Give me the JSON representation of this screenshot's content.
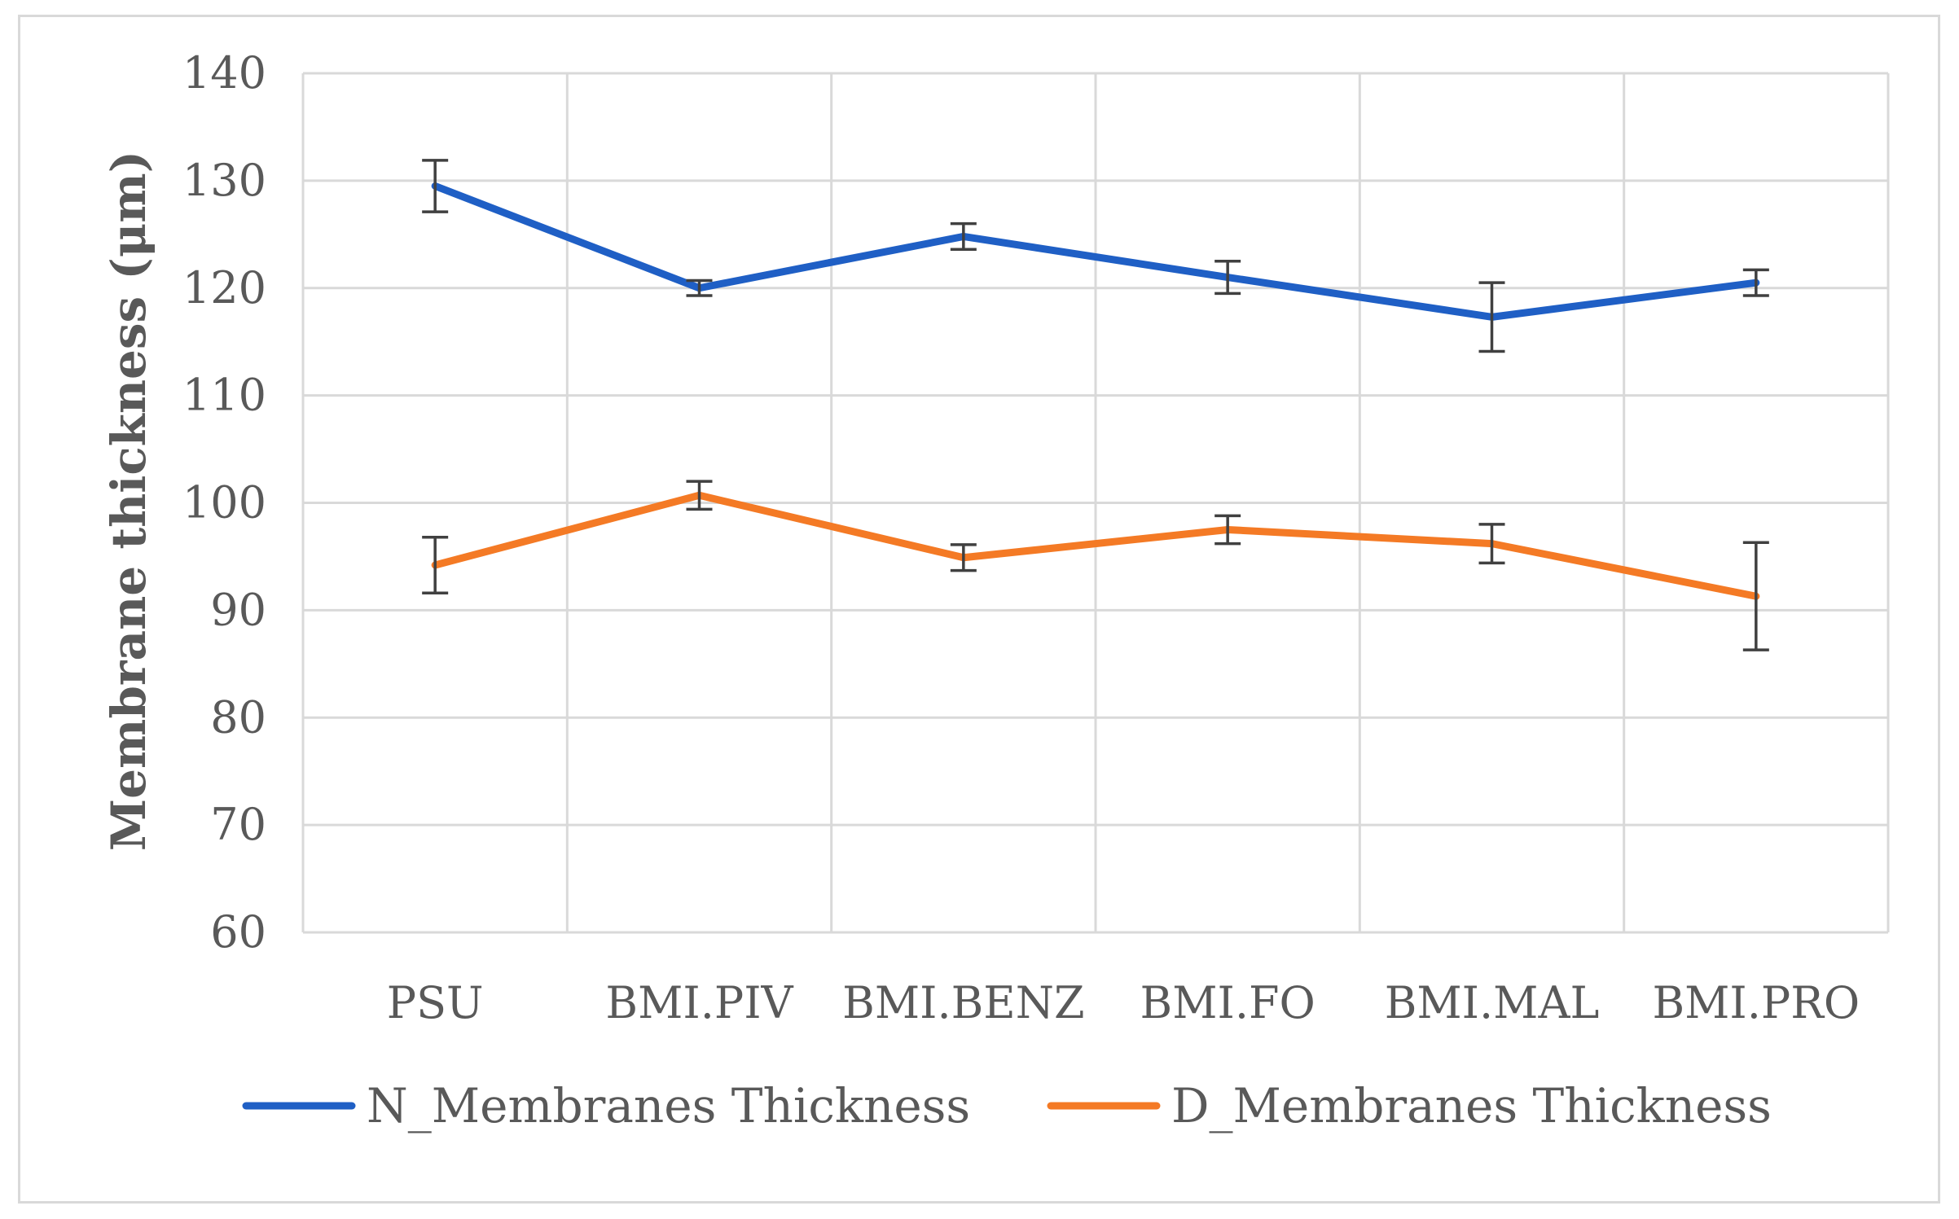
{
  "chart_data": {
    "type": "line",
    "categories": [
      "PSU",
      "BMI.PIV",
      "BMI.BENZ",
      "BMI.FO",
      "BMI.MAL",
      "BMI.PRO"
    ],
    "ylabel": "Membrane thickness (μm)",
    "xlabel": "",
    "ylim": [
      60,
      140
    ],
    "yticks": [
      60,
      70,
      80,
      90,
      100,
      110,
      120,
      130,
      140
    ],
    "grid": true,
    "legend_position": "bottom",
    "series": [
      {
        "name": "N_Membranes Thickness",
        "color": "#1f5fc5",
        "values": [
          129.5,
          120.0,
          124.8,
          121.0,
          117.3,
          120.5
        ],
        "error": [
          2.4,
          0.7,
          1.2,
          1.5,
          3.2,
          1.2
        ]
      },
      {
        "name": "D_Membranes Thickness",
        "color": "#f47a25",
        "values": [
          94.2,
          100.7,
          94.9,
          97.5,
          96.2,
          91.3
        ],
        "error": [
          2.6,
          1.3,
          1.2,
          1.3,
          1.8,
          5.0
        ]
      }
    ]
  }
}
